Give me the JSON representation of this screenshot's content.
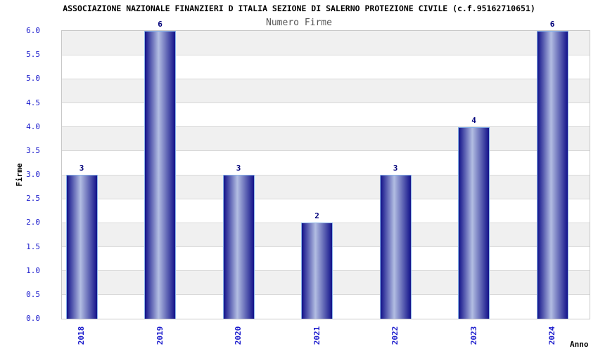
{
  "header": {
    "title": "ASSOCIAZIONE NAZIONALE FINANZIERI D ITALIA SEZIONE DI SALERNO PROTEZIONE CIVILE (c.f.95162710651)",
    "subtitle": "Numero Firme"
  },
  "chart_data": {
    "type": "bar",
    "title": "Numero Firme",
    "categories": [
      "2018",
      "2019",
      "2020",
      "2021",
      "2022",
      "2023",
      "2024"
    ],
    "values": [
      3,
      6,
      3,
      2,
      3,
      4,
      6
    ],
    "value_labels": [
      "3",
      "6",
      "3",
      "2",
      "3",
      "4",
      "6"
    ],
    "xlabel": "Anno",
    "ylabel": "Firme",
    "ylim": [
      0,
      6
    ],
    "yticks": [
      "0.0",
      "0.5",
      "1.0",
      "1.5",
      "2.0",
      "2.5",
      "3.0",
      "3.5",
      "4.0",
      "4.5",
      "5.0",
      "5.5",
      "6.0"
    ],
    "legend": "none",
    "grid": "horizontal-bands-alternating",
    "colors": {
      "bar_dark": "#12128a",
      "bar_light": "#b2bde2",
      "bar_border": "#8ab4e8",
      "tick_label": "#1a1acc",
      "value_label": "#00007a",
      "band_gray": "#f0f0f0",
      "band_white": "#ffffff",
      "grid_line": "#d9d9d9",
      "plot_border": "#c8c8c8",
      "title_color": "#000000",
      "subtitle_color": "#555555"
    }
  }
}
